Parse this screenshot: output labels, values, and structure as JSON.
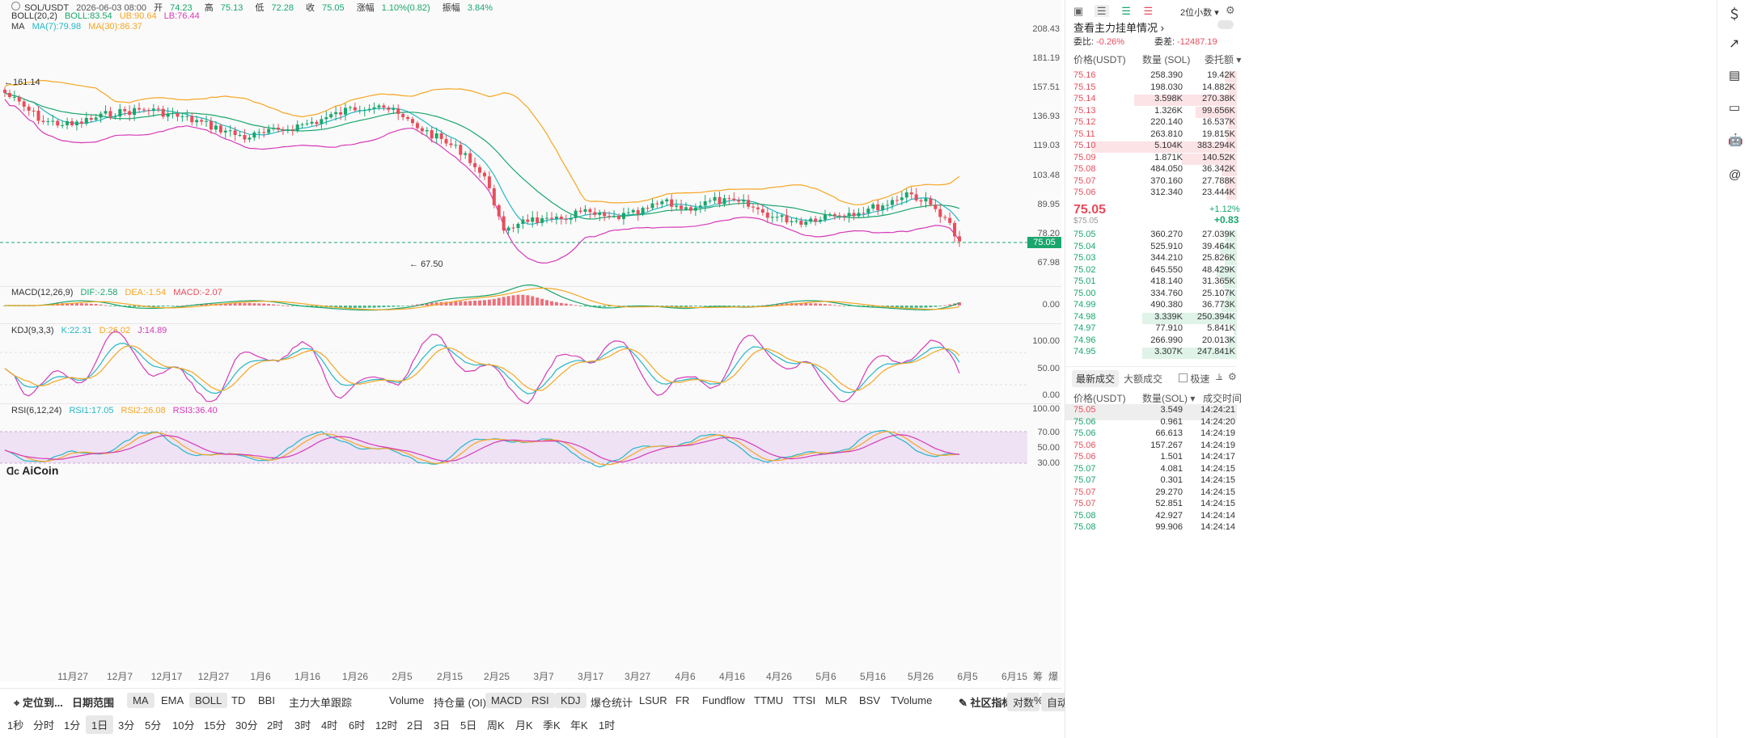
{
  "header": {
    "symbol": "SOL/USDT",
    "datetime": "2026-06-03 08:00",
    "open_label": "开",
    "open": "74.23",
    "high_label": "高",
    "high": "75.13",
    "low_label": "低",
    "low": "72.28",
    "close_label": "收",
    "close": "75.05",
    "change_label": "涨幅",
    "change": "1.10%(0.82)",
    "amp_label": "振幅",
    "amp": "3.84%"
  },
  "boll": {
    "name": "BOLL(20,2)",
    "boll": "BOLL:83.54",
    "ub": "UB:90.64",
    "lb": "LB:76.44"
  },
  "ma": {
    "name": "MA",
    "ma7": "MA(7):79.98",
    "ma30": "MA(30):86.37"
  },
  "macd": {
    "name": "MACD(12,26,9)",
    "dif": "DIF:-2.58",
    "dea": "DEA:-1.54",
    "macd": "MACD:-2.07"
  },
  "kdj": {
    "name": "KDJ(9,3,3)",
    "k": "K:22.31",
    "d": "D:26.02",
    "j": "J:14.89"
  },
  "rsi": {
    "name": "RSI(6,12,24)",
    "r1": "RSI1:17.05",
    "r2": "RSI2:26.08",
    "r3": "RSI3:36.40"
  },
  "price_axis": [
    "208.43",
    "181.19",
    "157.51",
    "136.93",
    "119.03",
    "103.48",
    "89.95",
    "78.20",
    "67.98"
  ],
  "current_price_tag": "75.05",
  "high_marker": "161.14",
  "low_marker": "67.50",
  "macd_axis": [
    "0.00"
  ],
  "kdj_axis": [
    "100.00",
    "50.00",
    "0.00"
  ],
  "rsi_axis": [
    "100.00",
    "70.00",
    "50.00",
    "30.00"
  ],
  "xaxis": [
    "11月27",
    "12月7",
    "12月17",
    "12月27",
    "1月6",
    "1月16",
    "1月26",
    "2月5",
    "2月15",
    "2月25",
    "3月7",
    "3月17",
    "3月27",
    "4月6",
    "4月16",
    "4月26",
    "5月6",
    "5月16",
    "5月26",
    "6月5",
    "6月15"
  ],
  "xaxis_right": {
    "a": "筹",
    "b": "爆"
  },
  "logo": "AiCoin",
  "toolbar1": {
    "locate": "定位到...",
    "date_range": "日期范围",
    "items": [
      "MA",
      "EMA",
      "BOLL",
      "TD",
      "BBI",
      "主力大单跟踪",
      "Volume",
      "持仓量 (OI)",
      "MACD",
      "RSI",
      "KDJ",
      "爆仓统计",
      "LSUR",
      "FR",
      "Fundflow",
      "TTMU",
      "TTSI",
      "MLR",
      "BSV",
      "TVolume"
    ],
    "community": "社区指标",
    "log": "对数",
    "pct": "%",
    "auto": "自动"
  },
  "toolbar2": {
    "items": [
      "1秒",
      "分时",
      "1分",
      "1日",
      "3分",
      "5分",
      "10分",
      "15分",
      "30分",
      "2时",
      "3时",
      "4时",
      "6时",
      "12时",
      "2日",
      "3日",
      "5日",
      "周K",
      "月K",
      "季K",
      "年K",
      "1时"
    ],
    "active": "1日"
  },
  "orderbook": {
    "precision": "2位小数",
    "depth_title": "查看主力挂单情况",
    "wb_label": "委比:",
    "wb": "-0.26%",
    "wc_label": "委差:",
    "wc": "-12487.19",
    "col_price": "价格(USDT)",
    "col_qty": "数量 (SOL)",
    "col_total": "委托额",
    "asks": [
      {
        "p": "75.16",
        "q": "258.390",
        "t": "19.42K",
        "w": 0.07
      },
      {
        "p": "75.15",
        "q": "198.030",
        "t": "14.882K",
        "w": 0.05
      },
      {
        "p": "75.14",
        "q": "3.598K",
        "t": "270.38K",
        "w": 0.6
      },
      {
        "p": "75.13",
        "q": "1.326K",
        "t": "99.656K",
        "w": 0.24
      },
      {
        "p": "75.12",
        "q": "220.140",
        "t": "16.537K",
        "w": 0.05
      },
      {
        "p": "75.11",
        "q": "263.810",
        "t": "19.815K",
        "w": 0.06
      },
      {
        "p": "75.10",
        "q": "5.104K",
        "t": "383.294K",
        "w": 0.85
      },
      {
        "p": "75.09",
        "q": "1.871K",
        "t": "140.52K",
        "w": 0.32
      },
      {
        "p": "75.08",
        "q": "484.050",
        "t": "36.342K",
        "w": 0.09
      },
      {
        "p": "75.07",
        "q": "370.160",
        "t": "27.788K",
        "w": 0.07
      },
      {
        "p": "75.06",
        "q": "312.340",
        "t": "23.444K",
        "w": 0.06
      }
    ],
    "last_price": "75.05",
    "last_usd": "$75.05",
    "last_pct": "+1.12%",
    "last_chg": "+0.83",
    "bids": [
      {
        "p": "75.05",
        "q": "360.270",
        "t": "27.039K",
        "w": 0.07
      },
      {
        "p": "75.04",
        "q": "525.910",
        "t": "39.464K",
        "w": 0.1
      },
      {
        "p": "75.03",
        "q": "344.210",
        "t": "25.826K",
        "w": 0.07
      },
      {
        "p": "75.02",
        "q": "645.550",
        "t": "48.429K",
        "w": 0.12
      },
      {
        "p": "75.01",
        "q": "418.140",
        "t": "31.365K",
        "w": 0.08
      },
      {
        "p": "75.00",
        "q": "334.760",
        "t": "25.107K",
        "w": 0.06
      },
      {
        "p": "74.99",
        "q": "490.380",
        "t": "36.773K",
        "w": 0.09
      },
      {
        "p": "74.98",
        "q": "3.339K",
        "t": "250.394K",
        "w": 0.55
      },
      {
        "p": "74.97",
        "q": "77.910",
        "t": "5.841K",
        "w": 0.02
      },
      {
        "p": "74.96",
        "q": "266.990",
        "t": "20.013K",
        "w": 0.05
      },
      {
        "p": "74.95",
        "q": "3.307K",
        "t": "247.841K",
        "w": 0.55
      }
    ]
  },
  "trades": {
    "tab_latest": "最新成交",
    "tab_large": "大额成交",
    "fast": "极速",
    "col_price": "价格(USDT)",
    "col_qty": "数量(SOL)",
    "col_time": "成交时间",
    "rows": [
      {
        "p": "75.05",
        "q": "3.549",
        "t": "14:24:21",
        "side": "sell"
      },
      {
        "p": "75.06",
        "q": "0.961",
        "t": "14:24:20",
        "side": "buy"
      },
      {
        "p": "75.06",
        "q": "66.613",
        "t": "14:24:19",
        "side": "buy"
      },
      {
        "p": "75.06",
        "q": "157.267",
        "t": "14:24:19",
        "side": "sell"
      },
      {
        "p": "75.06",
        "q": "1.501",
        "t": "14:24:17",
        "side": "sell"
      },
      {
        "p": "75.07",
        "q": "4.081",
        "t": "14:24:15",
        "side": "buy"
      },
      {
        "p": "75.07",
        "q": "0.301",
        "t": "14:24:15",
        "side": "buy"
      },
      {
        "p": "75.07",
        "q": "29.270",
        "t": "14:24:15",
        "side": "sell"
      },
      {
        "p": "75.07",
        "q": "52.851",
        "t": "14:24:15",
        "side": "sell"
      },
      {
        "p": "75.08",
        "q": "42.927",
        "t": "14:24:14",
        "side": "buy"
      },
      {
        "p": "75.08",
        "q": "99.906",
        "t": "14:24:14",
        "side": "buy"
      }
    ]
  },
  "colors": {
    "up": "#1aa66d",
    "down": "#e84d5b",
    "boll_mid": "#1aa66d",
    "boll_ub": "#f5a623",
    "boll_lb": "#d63ab8",
    "ma7": "#26b7c6",
    "ma30": "#f5a623"
  }
}
